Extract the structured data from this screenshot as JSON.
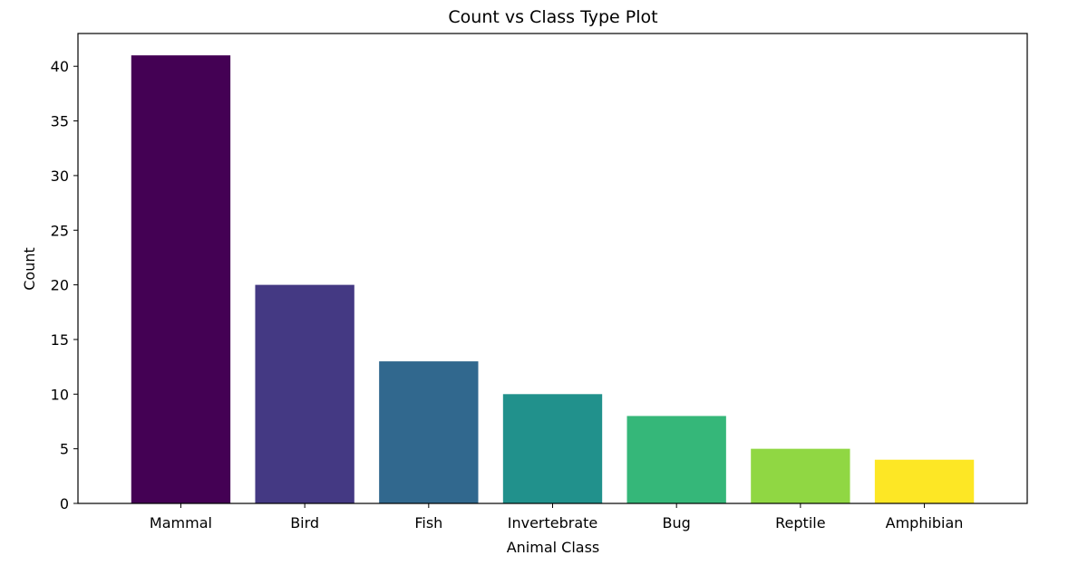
{
  "chart_data": {
    "type": "bar",
    "title": "Count vs Class Type Plot",
    "xlabel": "Animal Class",
    "ylabel": "Count",
    "categories": [
      "Mammal",
      "Bird",
      "Fish",
      "Invertebrate",
      "Bug",
      "Reptile",
      "Amphibian"
    ],
    "values": [
      41,
      20,
      13,
      10,
      8,
      5,
      4
    ],
    "colors": [
      "#440154",
      "#443983",
      "#31688e",
      "#21918c",
      "#35b779",
      "#90d743",
      "#fde725"
    ],
    "ylim": [
      0,
      43
    ],
    "yticks": [
      0,
      5,
      10,
      15,
      20,
      25,
      30,
      35,
      40
    ],
    "grid": false,
    "legend": false
  }
}
